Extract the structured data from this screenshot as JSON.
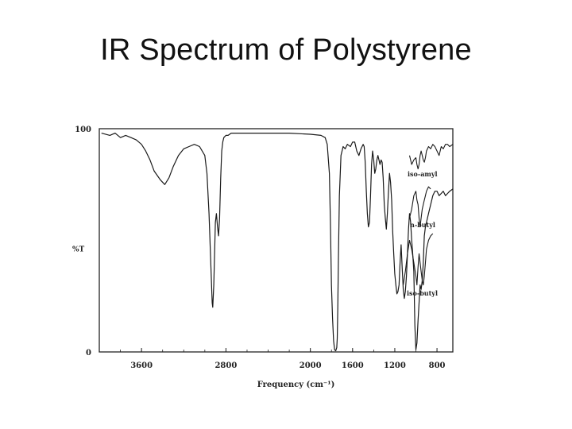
{
  "slide": {
    "title": "IR Spectrum of Polystyrene"
  },
  "chart_data": {
    "type": "line",
    "title": "",
    "xlabel": "Frequency (cm⁻¹)",
    "ylabel": "%T",
    "xlim": [
      4000,
      650
    ],
    "ylim": [
      0,
      100
    ],
    "x_reversed": true,
    "grid": false,
    "x_ticks": [
      {
        "value": 3600,
        "label": "3600"
      },
      {
        "value": 2800,
        "label": "2800"
      },
      {
        "value": 2000,
        "label": "2000"
      },
      {
        "value": 1600,
        "label": "1600"
      },
      {
        "value": 1200,
        "label": "1200"
      },
      {
        "value": 800,
        "label": "800"
      }
    ],
    "y_ticks": [
      {
        "value": 100,
        "label": "100"
      },
      {
        "value": 0,
        "label": "0"
      }
    ],
    "series": [
      {
        "name": "",
        "x": [
          3980,
          3900,
          3850,
          3800,
          3750,
          3700,
          3650,
          3600,
          3560,
          3520,
          3480,
          3420,
          3380,
          3340,
          3300,
          3250,
          3200,
          3150,
          3100,
          3050,
          3000,
          2980,
          2960,
          2940,
          2930,
          2925,
          2915,
          2900,
          2890,
          2880,
          2870,
          2860,
          2850,
          2840,
          2830,
          2820,
          2800,
          2780,
          2750,
          2700,
          2600,
          2400,
          2200,
          2000,
          1900,
          1860,
          1840,
          1820,
          1810,
          1800,
          1790,
          1780,
          1770,
          1760,
          1750,
          1745,
          1740,
          1735,
          1725,
          1710,
          1690,
          1670,
          1650,
          1620,
          1600,
          1580,
          1560,
          1540,
          1520,
          1500,
          1490,
          1480,
          1470,
          1460,
          1450,
          1440,
          1430,
          1420,
          1410,
          1400,
          1390,
          1380,
          1370,
          1360,
          1350,
          1340,
          1330,
          1320,
          1310,
          1300,
          1290,
          1280,
          1270,
          1260,
          1250,
          1240,
          1230,
          1220,
          1210,
          1200,
          1190,
          1180,
          1170,
          1160,
          1150,
          1140,
          1130,
          1120,
          1110,
          1100,
          1090,
          1080,
          1070,
          1060,
          1050,
          1040,
          1030,
          1020,
          1010,
          1000,
          990,
          980,
          970,
          960,
          950,
          940,
          930,
          920,
          910,
          900,
          880,
          860,
          840,
          820,
          800,
          780,
          760,
          740,
          720,
          700,
          680,
          650
        ],
        "y": [
          98,
          97,
          98,
          96,
          97,
          96,
          95,
          93,
          90,
          86,
          81,
          77,
          75,
          78,
          83,
          88,
          91,
          92,
          93,
          92,
          88,
          80,
          62,
          35,
          22,
          20,
          30,
          58,
          62,
          56,
          52,
          60,
          78,
          90,
          94,
          96,
          97,
          97,
          98,
          98,
          98,
          98,
          98,
          97.5,
          97,
          96,
          93,
          80,
          58,
          30,
          15,
          5,
          1,
          0.5,
          2,
          6,
          20,
          40,
          70,
          88,
          92,
          91,
          93,
          92,
          94,
          94,
          90,
          88,
          91,
          93,
          92,
          85,
          72,
          62,
          56,
          58,
          70,
          84,
          90,
          86,
          80,
          82,
          86,
          88,
          86,
          84,
          86,
          85,
          78,
          66,
          60,
          55,
          62,
          72,
          80,
          76,
          68,
          54,
          44,
          35,
          30,
          26,
          27,
          30,
          40,
          48,
          38,
          28,
          24,
          27,
          34,
          44,
          55,
          62,
          58,
          50,
          44,
          36,
          12,
          1,
          4,
          14,
          22,
          30,
          28,
          32,
          40,
          52,
          56,
          58,
          62,
          66,
          70,
          72,
          72,
          70,
          71,
          72,
          70,
          71,
          72,
          73
        ]
      }
    ],
    "annotations": [
      {
        "text": "iso-amyl"
      },
      {
        "text": "n-butyl"
      },
      {
        "text": "iso-butyl"
      }
    ],
    "overlay_traces": [
      {
        "x": [
          1060,
          1040,
          1020,
          1000,
          990,
          980,
          970,
          960,
          950,
          940,
          930,
          920,
          910,
          900,
          880,
          860,
          840,
          820,
          800,
          780,
          760,
          740,
          720,
          700,
          680,
          650
        ],
        "y": [
          88,
          84,
          86,
          87,
          84,
          82,
          84,
          88,
          90,
          88,
          86,
          85,
          87,
          90,
          92,
          91,
          93,
          92,
          90,
          88,
          92,
          91,
          93,
          93,
          92,
          93
        ]
      },
      {
        "x": [
          1060,
          1040,
          1020,
          1000,
          990,
          980,
          970,
          960,
          950,
          940,
          930,
          920,
          910,
          900,
          880,
          860
        ],
        "y": [
          60,
          64,
          70,
          72,
          68,
          66,
          60,
          56,
          60,
          64,
          66,
          68,
          70,
          72,
          74,
          73
        ]
      },
      {
        "x": [
          1120,
          1100,
          1080,
          1060,
          1040,
          1020,
          1000,
          990,
          980,
          970,
          960,
          950,
          940,
          930,
          920,
          910,
          900,
          880,
          860,
          840
        ],
        "y": [
          30,
          36,
          44,
          50,
          46,
          40,
          34,
          30,
          38,
          44,
          40,
          36,
          32,
          30,
          34,
          40,
          46,
          50,
          52,
          53
        ]
      }
    ]
  }
}
